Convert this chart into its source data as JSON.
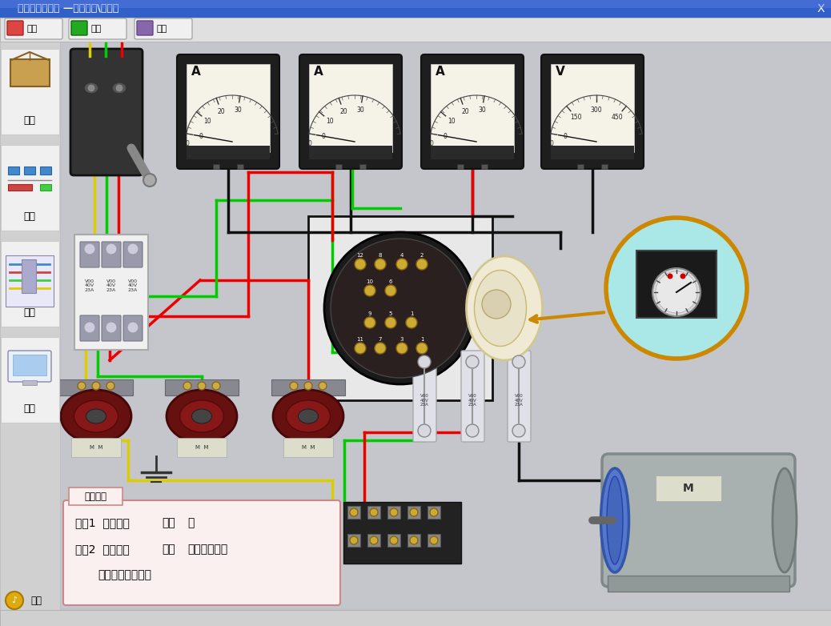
{
  "title_bar_color": "#3060c8",
  "title_text": "电工技能与实训 —电工仪表\\配电板",
  "title_text_color": "#ffffff",
  "bg_color": "#c0c2c8",
  "sidebar_bg": "#d0d0d0",
  "sidebar_items": [
    "外型",
    "布局",
    "连线",
    "仿真"
  ],
  "nav_items": [
    "首页",
    "返回",
    "帮助"
  ],
  "music_label": "音乐",
  "red": "#ee0000",
  "green": "#00cc00",
  "yellow": "#ddcc00",
  "black": "#111111",
  "bubble_bg": "#aae8e8",
  "bubble_border": "#cc8800",
  "step_text1": "步骤1  合上电源",
  "step_text1b": "开关",
  "step_text1c": "。",
  "step_text2": "步骤2  拨动转换",
  "step_text2b": "开关",
  "step_text2c": "，观察电压表",
  "step_text3": "        和电流表的现象。",
  "step_title": "操作步骤"
}
